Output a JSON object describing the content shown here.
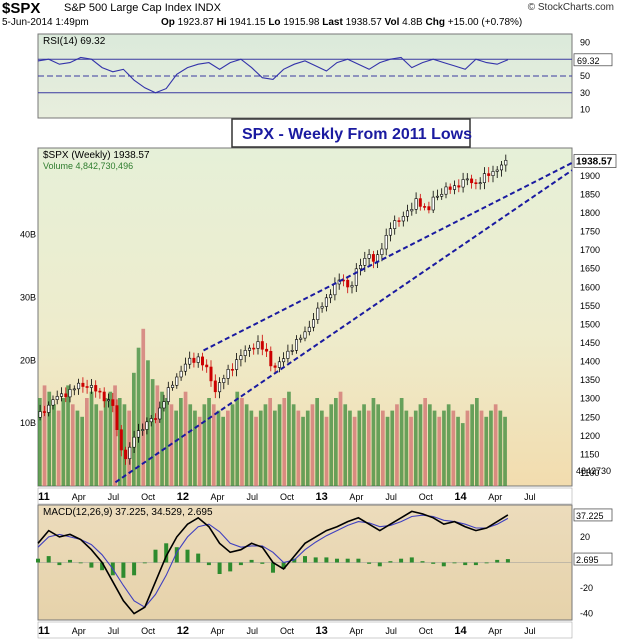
{
  "header": {
    "symbol": "$SPX",
    "description": "S&P 500 Large Cap Index INDX",
    "date": "5-Jun-2014 1:49pm",
    "op_label": "Op",
    "op": "1923.87",
    "hi_label": "Hi",
    "hi": "1941.15",
    "lo_label": "Lo",
    "lo": "1915.98",
    "last_label": "Last",
    "last": "1938.57",
    "vol_label": "Vol",
    "vol": "4.8B",
    "chg_label": "Chg",
    "chg": "+15.00 (+0.78%)",
    "watermark": "© StockCharts.com"
  },
  "colors": {
    "up": "#000000",
    "down": "#cc0000",
    "trendline": "#1a1aa0",
    "rsi_line": "#3333aa",
    "macd_line": "#000000",
    "signal_line": "#4040c0",
    "hist": "#2e8b2e",
    "vol_up": "#3a8a3a",
    "vol_down": "#d07070"
  },
  "chart_data": [
    {
      "type": "line",
      "title": "RSI(14) 69.32",
      "current_label": "69.32",
      "ylim": [
        0,
        100
      ],
      "y_ticks": [
        "90",
        "70",
        "50",
        "30",
        "10"
      ],
      "reference_lines": [
        70,
        50,
        30
      ],
      "x": [
        0,
        4,
        8,
        12,
        16,
        20,
        24,
        28,
        32,
        36,
        40,
        44,
        48,
        52,
        56,
        60,
        64,
        68,
        72,
        76,
        80,
        84,
        88,
        92,
        96,
        100,
        104,
        108,
        112,
        116,
        120,
        124,
        128,
        132,
        136,
        140,
        144,
        148,
        152,
        156,
        160,
        164,
        168,
        172,
        176
      ],
      "values": [
        68,
        70,
        64,
        66,
        72,
        70,
        60,
        55,
        58,
        45,
        36,
        30,
        35,
        52,
        60,
        64,
        66,
        58,
        66,
        70,
        60,
        48,
        46,
        58,
        64,
        68,
        62,
        56,
        66,
        70,
        64,
        58,
        66,
        70,
        72,
        60,
        66,
        70,
        66,
        62,
        58,
        70,
        66,
        64,
        69.32
      ]
    },
    {
      "type": "candlestick",
      "title": "$SPX (Weekly) 1938.57",
      "volume_label": "Volume 4,842,730,496",
      "annotation": "SPX - Weekly From 2011 Lows",
      "last_price_label": "1938.57",
      "volume_last_label": "4842730",
      "price_ticks": [
        "1900",
        "1850",
        "1800",
        "1750",
        "1700",
        "1650",
        "1600",
        "1550",
        "1500",
        "1450",
        "1400",
        "1350",
        "1300",
        "1250",
        "1200",
        "1150",
        "1100"
      ],
      "volume_ticks": [
        "40B",
        "30B",
        "20B",
        "10B"
      ],
      "x_ticks": [
        "11",
        "Apr",
        "Jul",
        "Oct",
        "12",
        "Apr",
        "Jul",
        "Oct",
        "13",
        "Apr",
        "Jul",
        "Oct",
        "14",
        "Apr",
        "Jul"
      ],
      "close_points": [
        [
          0,
          1250
        ],
        [
          6,
          1300
        ],
        [
          12,
          1320
        ],
        [
          16,
          1340
        ],
        [
          20,
          1330
        ],
        [
          24,
          1310
        ],
        [
          28,
          1280
        ],
        [
          30,
          1200
        ],
        [
          32,
          1140
        ],
        [
          34,
          1150
        ],
        [
          36,
          1200
        ],
        [
          40,
          1230
        ],
        [
          44,
          1250
        ],
        [
          48,
          1310
        ],
        [
          52,
          1360
        ],
        [
          56,
          1400
        ],
        [
          60,
          1410
        ],
        [
          64,
          1370
        ],
        [
          66,
          1320
        ],
        [
          70,
          1360
        ],
        [
          74,
          1400
        ],
        [
          78,
          1430
        ],
        [
          82,
          1450
        ],
        [
          86,
          1420
        ],
        [
          88,
          1380
        ],
        [
          90,
          1390
        ],
        [
          94,
          1430
        ],
        [
          98,
          1460
        ],
        [
          102,
          1500
        ],
        [
          106,
          1550
        ],
        [
          110,
          1590
        ],
        [
          114,
          1630
        ],
        [
          116,
          1600
        ],
        [
          118,
          1610
        ],
        [
          120,
          1660
        ],
        [
          124,
          1690
        ],
        [
          126,
          1660
        ],
        [
          128,
          1700
        ],
        [
          132,
          1760
        ],
        [
          136,
          1790
        ],
        [
          140,
          1810
        ],
        [
          142,
          1840
        ],
        [
          144,
          1820
        ],
        [
          146,
          1800
        ],
        [
          148,
          1840
        ],
        [
          152,
          1860
        ],
        [
          156,
          1870
        ],
        [
          160,
          1890
        ],
        [
          164,
          1880
        ],
        [
          168,
          1900
        ],
        [
          172,
          1920
        ],
        [
          176,
          1938.57
        ]
      ],
      "upper_trendline": [
        [
          62,
          1430
        ],
        [
          200,
          1935
        ]
      ],
      "lower_trendline": [
        [
          29,
          1075
        ],
        [
          200,
          1915
        ]
      ],
      "volume_bn": [
        14,
        16,
        15,
        13,
        12,
        14,
        16,
        13,
        12,
        11,
        14,
        15,
        13,
        12,
        14,
        15,
        16,
        14,
        13,
        12,
        18,
        22,
        25,
        20,
        17,
        16,
        15,
        14,
        13,
        12,
        14,
        15,
        13,
        12,
        11,
        13,
        14,
        13,
        12,
        11,
        12,
        13,
        15,
        14,
        13,
        12,
        11,
        12,
        13,
        14,
        12,
        13,
        14,
        15,
        13,
        12,
        11,
        12,
        13,
        14,
        12,
        11,
        13,
        14,
        15,
        13,
        12,
        11,
        12,
        13,
        12,
        14,
        13,
        12,
        11,
        12,
        13,
        14,
        12,
        11,
        12,
        13,
        14,
        13,
        12,
        11,
        12,
        13,
        12,
        11,
        10,
        12,
        13,
        14,
        12,
        11,
        12,
        13,
        12,
        11
      ]
    },
    {
      "type": "line",
      "title": "MACD(12,26,9) 37.225, 34.529, 2.695",
      "macd_value": "37.225",
      "signal_value": "34.529",
      "hist_value": "2.695",
      "y_ticks": [
        "20",
        "0",
        "-20",
        "-40"
      ],
      "ylim": [
        -45,
        45
      ],
      "x": [
        0,
        4,
        8,
        12,
        16,
        20,
        24,
        28,
        32,
        36,
        40,
        44,
        48,
        52,
        56,
        60,
        64,
        68,
        72,
        76,
        80,
        84,
        88,
        92,
        96,
        100,
        104,
        108,
        112,
        116,
        120,
        124,
        128,
        132,
        136,
        140,
        144,
        148,
        152,
        156,
        160,
        164,
        168,
        172,
        176
      ],
      "macd": [
        15,
        25,
        20,
        22,
        18,
        10,
        0,
        -15,
        -30,
        -40,
        -35,
        -15,
        5,
        20,
        30,
        35,
        28,
        15,
        8,
        10,
        15,
        12,
        0,
        -5,
        5,
        15,
        20,
        25,
        28,
        32,
        35,
        30,
        25,
        30,
        35,
        40,
        38,
        35,
        30,
        32,
        28,
        25,
        27,
        32,
        37.225
      ],
      "signal": [
        12,
        20,
        22,
        20,
        18,
        14,
        6,
        -5,
        -18,
        -30,
        -35,
        -25,
        -10,
        8,
        20,
        28,
        30,
        24,
        15,
        12,
        13,
        13,
        8,
        0,
        2,
        10,
        16,
        21,
        25,
        29,
        32,
        31,
        28,
        29,
        32,
        36,
        37,
        36,
        33,
        32,
        30,
        27,
        27,
        30,
        34.529
      ]
    }
  ]
}
